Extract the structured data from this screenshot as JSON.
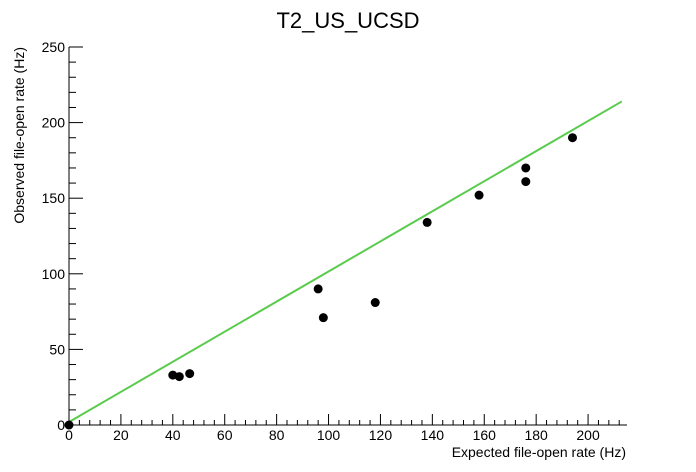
{
  "colors": {
    "background": "#ffffff",
    "axis": "#000000",
    "fit_line": "#5acb4c",
    "points": "#000000"
  },
  "chart_data": {
    "type": "scatter",
    "title": "T2_US_UCSD",
    "xlabel": "Expected file-open rate (Hz)",
    "ylabel": "Observed file-open rate (Hz)",
    "xlim": [
      0,
      215
    ],
    "ylim": [
      0,
      250
    ],
    "x_major_ticks": [
      0,
      20,
      40,
      60,
      80,
      100,
      120,
      140,
      160,
      180,
      200
    ],
    "x_minor_step": 4,
    "y_major_ticks": [
      0,
      50,
      100,
      150,
      200,
      250
    ],
    "y_minor_step": 10,
    "grid": false,
    "legend": "none",
    "series": [
      {
        "points": [
          {
            "x": 0,
            "y": 0
          },
          {
            "x": 40,
            "y": 33
          },
          {
            "x": 42.5,
            "y": 32
          },
          {
            "x": 46.5,
            "y": 34
          },
          {
            "x": 96,
            "y": 90
          },
          {
            "x": 98,
            "y": 71
          },
          {
            "x": 118,
            "y": 81
          },
          {
            "x": 138,
            "y": 134
          },
          {
            "x": 158,
            "y": 152
          },
          {
            "x": 176,
            "y": 170
          },
          {
            "x": 176,
            "y": 161
          },
          {
            "x": 194,
            "y": 190
          }
        ]
      }
    ],
    "fit_line": {
      "x": [
        0,
        213
      ],
      "y": [
        2,
        214
      ]
    }
  }
}
